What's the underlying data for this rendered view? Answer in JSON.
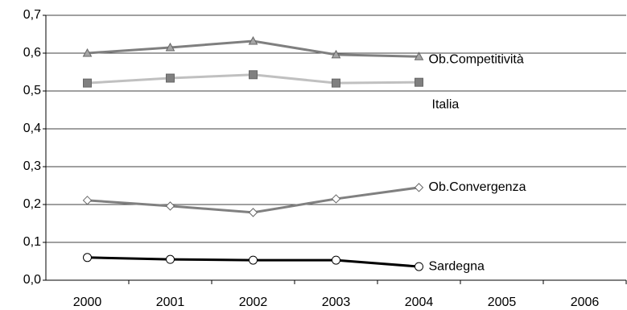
{
  "chart_data": {
    "type": "line",
    "categories": [
      "2000",
      "2001",
      "2002",
      "2003",
      "2004",
      "2005",
      "2006"
    ],
    "series": [
      {
        "name": "Ob.Competitività",
        "color": "#7f7f7f",
        "marker": "triangle",
        "marker_color": "#a6a6a6",
        "values": [
          0.6,
          0.615,
          0.632,
          0.596,
          0.591,
          null,
          null
        ]
      },
      {
        "name": "Italia",
        "color": "#c0c0c0",
        "marker": "square",
        "marker_color": "#808080",
        "values": [
          0.521,
          0.534,
          0.543,
          0.521,
          0.523,
          null,
          null
        ]
      },
      {
        "name": "Ob.Convergenza",
        "color": "#808080",
        "marker": "diamond",
        "marker_color": "#ffffff",
        "values": [
          0.211,
          0.196,
          0.179,
          0.215,
          0.245,
          null,
          null
        ]
      },
      {
        "name": "Sardegna",
        "color": "#000000",
        "marker": "circle",
        "marker_color": "#ffffff",
        "values": [
          0.06,
          0.055,
          0.053,
          0.053,
          0.036,
          null,
          null
        ]
      }
    ],
    "ylim": [
      0,
      0.7
    ],
    "yticks": [
      {
        "value": 0,
        "label": "0,0"
      },
      {
        "value": 0.1,
        "label": "0,1"
      },
      {
        "value": 0.2,
        "label": "0,2"
      },
      {
        "value": 0.3,
        "label": "0,3"
      },
      {
        "value": 0.4,
        "label": "0,4"
      },
      {
        "value": 0.5,
        "label": "0,5"
      },
      {
        "value": 0.6,
        "label": "0,6"
      },
      {
        "value": 0.7,
        "label": "0,7"
      }
    ],
    "grid": true
  }
}
